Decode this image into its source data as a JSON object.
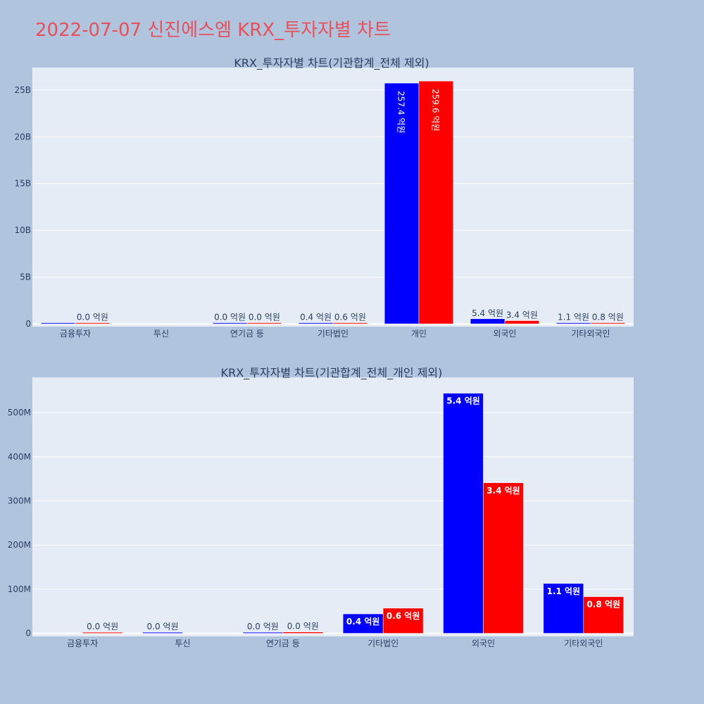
{
  "page": {
    "title": "2022-07-07 신진에스엠 KRX_투자자별 차트"
  },
  "colors": {
    "background": "#b0c4de",
    "plot_bg": "#e5ecf6",
    "title": "#e8505b",
    "buy": "#0000ff",
    "sell": "#ff0000",
    "text": "#2a3f5f"
  },
  "chart_data": [
    {
      "type": "bar",
      "title": "KRX_투자자별 차트(기관합계_전체 제외)",
      "categories": [
        "금융투자",
        "투신",
        "연기금 등",
        "기타법인",
        "개인",
        "외국인",
        "기타외국인"
      ],
      "series": [
        {
          "values": [
            1500000,
            0,
            2000000,
            40000000,
            25740000000,
            540000000,
            110000000
          ],
          "labels": [
            "",
            "",
            "0.0 억원",
            "0.4 억원",
            "257.4 억원",
            "5.4 억원",
            "1.1 억원"
          ]
        },
        {
          "values": [
            1000000,
            0,
            3000000,
            60000000,
            25960000000,
            340000000,
            80000000
          ],
          "labels": [
            "0.0 억원",
            "",
            "0.0 억원",
            "0.6 억원",
            "259.6 억원",
            "3.4 억원",
            "0.8 억원"
          ]
        }
      ],
      "ylim": [
        -300000000,
        27400000000
      ],
      "yticks": [
        0,
        5000000000,
        10000000000,
        15000000000,
        20000000000,
        25000000000
      ],
      "ytick_labels": [
        "0",
        "5B",
        "10B",
        "15B",
        "20B",
        "25B"
      ],
      "grid": true
    },
    {
      "type": "bar",
      "title": "KRX_투자자별 차트(기관합계_전체_개인 제외)",
      "categories": [
        "금융투자",
        "투신",
        "연기금 등",
        "기타법인",
        "외국인",
        "기타외국인"
      ],
      "series": [
        {
          "values": [
            0,
            1000000,
            2000000,
            44000000,
            544000000,
            113000000
          ],
          "labels": [
            "",
            "0.0 억원",
            "0.0 억원",
            "0.4 억원",
            "5.4 억원",
            "1.1 억원"
          ]
        },
        {
          "values": [
            1000000,
            0,
            3000000,
            57000000,
            341000000,
            83000000
          ],
          "labels": [
            "0.0 억원",
            "",
            "0.0 억원",
            "0.6 억원",
            "3.4 억원",
            "0.8 억원"
          ]
        }
      ],
      "ylim": [
        -7000000,
        580000000
      ],
      "yticks": [
        0,
        100000000,
        200000000,
        300000000,
        400000000,
        500000000
      ],
      "ytick_labels": [
        "0",
        "100M",
        "200M",
        "300M",
        "400M",
        "500M"
      ],
      "grid": true
    }
  ]
}
